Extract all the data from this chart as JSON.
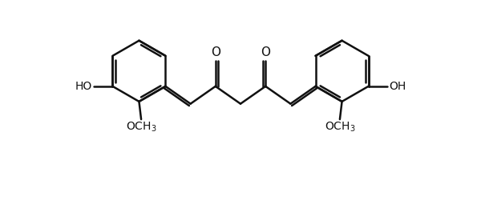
{
  "bg_color": "#ffffff",
  "bond_color": "#111111",
  "bond_lw": 1.8,
  "text_color": "#111111",
  "figsize": [
    6.0,
    2.7
  ],
  "dpi": 100,
  "xlim": [
    0,
    10
  ],
  "ylim": [
    0.2,
    5.2
  ]
}
